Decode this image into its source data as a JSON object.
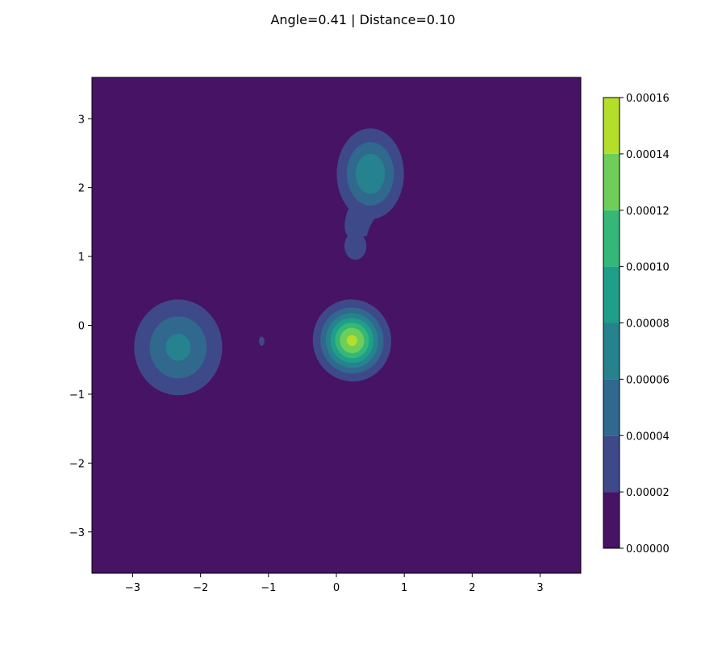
{
  "chart_data": {
    "type": "contourf",
    "title": "Angle=0.41 | Distance=0.10",
    "xlabel": "",
    "ylabel": "",
    "xlim": [
      -3.6,
      3.6
    ],
    "ylim": [
      -3.6,
      3.6
    ],
    "x_ticks": [
      -3,
      -2,
      -1,
      0,
      1,
      2,
      3
    ],
    "y_ticks": [
      -3,
      -2,
      -1,
      0,
      1,
      2,
      3
    ],
    "grid": false,
    "colorscale": "viridis",
    "levels": [
      0.0,
      2e-05,
      4e-05,
      6e-05,
      8e-05,
      0.0001,
      0.00012,
      0.00014,
      0.00016
    ],
    "level_labels": [
      "0.00000",
      "0.00002",
      "0.00004",
      "0.00006",
      "0.00008",
      "0.00010",
      "0.00012",
      "0.00014",
      "0.00016"
    ],
    "level_colors": [
      "#471365",
      "#3e4989",
      "#31688e",
      "#26828e",
      "#1f9e89",
      "#35b779",
      "#6ece58",
      "#b5de2b",
      "#fde725"
    ],
    "density_peaks": [
      {
        "x": 0.23,
        "y": -0.22,
        "peak": 0.000145
      },
      {
        "x": 0.5,
        "y": 2.2,
        "peak": 7.8e-05
      },
      {
        "x": -2.33,
        "y": -0.32,
        "peak": 6.6e-05
      },
      {
        "x": 0.28,
        "y": 1.15,
        "peak": 3e-05
      },
      {
        "x": -1.1,
        "y": -0.23,
        "peak": 2.5e-05
      }
    ]
  }
}
